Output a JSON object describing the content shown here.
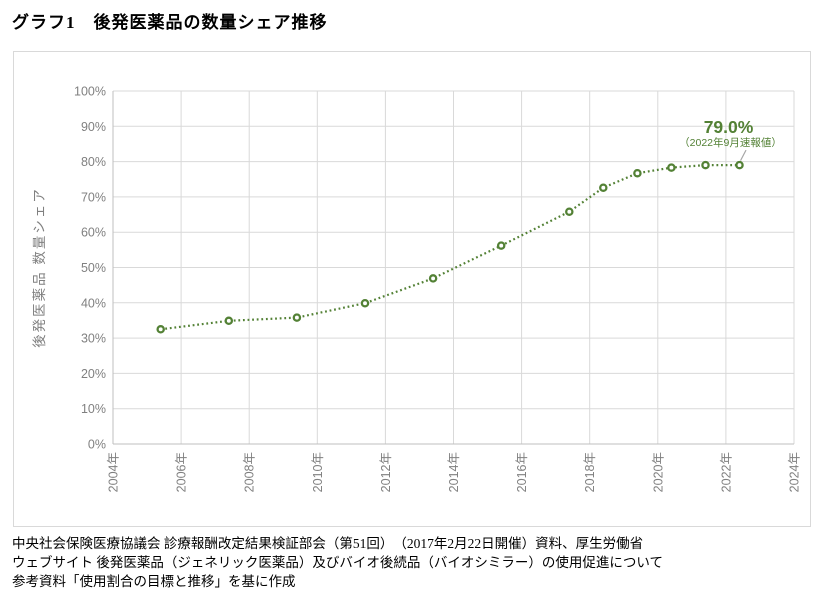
{
  "page": {
    "title": "グラフ1　後発医薬品の数量シェア推移",
    "footer": {
      "line1": "中央社会保険医療協議会 診療報酬改定結果検証部会（第51回）　（2017年2月22日開催）資料、厚生労働省",
      "line2": "ウェブサイト 後発医薬品（ジェネリック医薬品）及びバイオ後続品（バイオシミラー）の使用促進について",
      "line3": "参考資料「使用割合の目標と推移」を基に作成"
    }
  },
  "colors": {
    "series_green": "#538135",
    "gridline": "#d9d9d9",
    "axis_line": "#bfbfbf",
    "tick_text": "#808080",
    "axis_title_text": "#808080",
    "leader_line": "#a6a6a6",
    "frame_border": "#d9d9d9",
    "marker_fill": "#ffffff"
  },
  "chart_data": {
    "type": "line",
    "line_style": "dotted-with-ring-markers",
    "grid": true,
    "legend": "none",
    "y_axis": {
      "title": "後発医薬品 数量シェア",
      "min": 0,
      "max": 100,
      "step": 10,
      "tick_suffix": "%"
    },
    "x_axis": {
      "min": 2004,
      "max": 2024,
      "step": 2,
      "tick_suffix": "年"
    },
    "series": [
      {
        "color": "#538135",
        "point_x_offset_years": 0.4,
        "points": [
          {
            "year": 2005,
            "value": 32.5
          },
          {
            "year": 2007,
            "value": 34.9
          },
          {
            "year": 2009,
            "value": 35.8
          },
          {
            "year": 2011,
            "value": 39.9
          },
          {
            "year": 2013,
            "value": 46.9
          },
          {
            "year": 2015,
            "value": 56.2
          },
          {
            "year": 2017,
            "value": 65.8
          },
          {
            "year": 2018,
            "value": 72.6
          },
          {
            "year": 2019,
            "value": 76.7
          },
          {
            "year": 2020,
            "value": 78.3
          },
          {
            "year": 2021,
            "value": 79.0
          },
          {
            "year": 2022,
            "value": 79.0
          }
        ]
      }
    ],
    "annotation": {
      "value_label": "79.0%",
      "note_label": "（2022年9月速報値）"
    }
  }
}
